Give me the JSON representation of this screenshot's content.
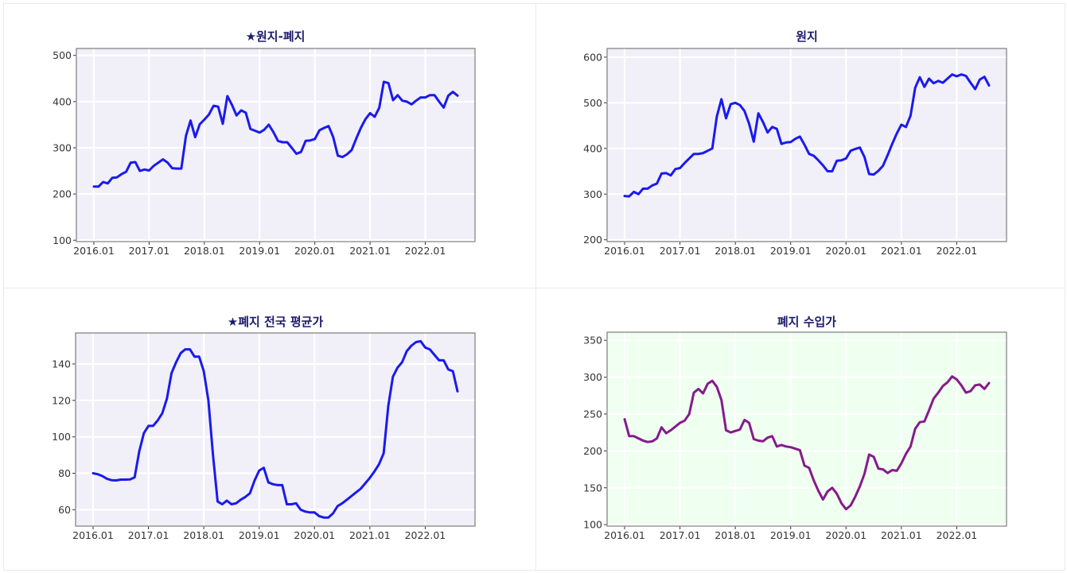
{
  "colors": {
    "line_blue": "#1a1aee",
    "line_purple": "#861a8c",
    "panel_lavender": "#f1eff7",
    "panel_mint": "#effff0",
    "title": "#1c1c6c"
  },
  "chart_data": [
    {
      "id": "chart-wonji-pyeji",
      "type": "line",
      "title": "★원지-폐지",
      "xlabel": "",
      "ylabel": "",
      "x_ticks": [
        "2016.01",
        "2017.01",
        "2018.01",
        "2019.01",
        "2020.01",
        "2021.01",
        "2022.01"
      ],
      "y_ticks": [
        100,
        200,
        300,
        400,
        500
      ],
      "ylim": [
        97,
        515
      ],
      "x_start": "2016.01",
      "x_end": "2022.08",
      "grid": true,
      "background": "#f1eff7",
      "series": [
        {
          "name": "원지-폐지",
          "color": "#1a1aee",
          "values": [
            216,
            216,
            226,
            223,
            235,
            236,
            243,
            248,
            268,
            269,
            250,
            253,
            251,
            261,
            268,
            275,
            268,
            256,
            255,
            255,
            326,
            359,
            323,
            351,
            361,
            372,
            391,
            389,
            352,
            412,
            393,
            370,
            381,
            376,
            341,
            337,
            333,
            339,
            350,
            334,
            315,
            312,
            312,
            300,
            287,
            291,
            315,
            316,
            319,
            338,
            343,
            347,
            323,
            283,
            280,
            286,
            295,
            320,
            343,
            362,
            375,
            367,
            387,
            443,
            440,
            403,
            414,
            402,
            400,
            394,
            402,
            409,
            409,
            414,
            414,
            400,
            387,
            413,
            421,
            413
          ]
        }
      ]
    },
    {
      "id": "chart-wonji",
      "type": "line",
      "title": "원지",
      "xlabel": "",
      "ylabel": "",
      "x_ticks": [
        "2016.01",
        "2017.01",
        "2018.01",
        "2019.01",
        "2020.01",
        "2021.01",
        "2022.01"
      ],
      "y_ticks": [
        200,
        300,
        400,
        500,
        600
      ],
      "ylim": [
        196,
        619
      ],
      "x_start": "2016.01",
      "x_end": "2022.08",
      "grid": true,
      "background": "#f1eff7",
      "series": [
        {
          "name": "원지",
          "color": "#1a1aee",
          "values": [
            296,
            295,
            305,
            300,
            312,
            312,
            319,
            323,
            345,
            346,
            341,
            355,
            357,
            368,
            378,
            388,
            388,
            390,
            395,
            400,
            470,
            508,
            466,
            497,
            500,
            495,
            482,
            454,
            415,
            477,
            458,
            435,
            447,
            443,
            410,
            413,
            414,
            421,
            426,
            408,
            388,
            384,
            374,
            363,
            350,
            350,
            373,
            374,
            378,
            395,
            399,
            402,
            381,
            344,
            343,
            351,
            362,
            385,
            410,
            433,
            452,
            447,
            472,
            533,
            556,
            535,
            553,
            543,
            548,
            544,
            553,
            562,
            558,
            562,
            559,
            544,
            530,
            551,
            557,
            538
          ]
        }
      ]
    },
    {
      "id": "chart-pyeji-national-avg",
      "type": "line",
      "title": "★폐지 전국 평균가",
      "xlabel": "",
      "ylabel": "",
      "x_ticks": [
        "2016.01",
        "2017.01",
        "2018.01",
        "2019.01",
        "2020.01",
        "2021.01",
        "2022.01"
      ],
      "y_ticks": [
        60,
        80,
        100,
        120,
        140
      ],
      "ylim": [
        51,
        157
      ],
      "x_start": "2016.01",
      "x_end": "2022.08",
      "grid": true,
      "background": "#f1eff7",
      "series": [
        {
          "name": "폐지 전국 평균가",
          "color": "#1a1aee",
          "values": [
            80,
            79.5,
            78.5,
            77,
            76.2,
            76.1,
            76.5,
            76.5,
            76.6,
            77.8,
            92,
            102,
            106,
            106,
            109,
            113,
            121,
            135,
            141,
            146,
            148,
            148,
            144,
            144,
            136,
            120,
            90,
            64.5,
            63,
            65,
            63,
            63.5,
            65.5,
            67,
            69,
            76,
            81.5,
            83,
            75,
            74,
            73.5,
            73.5,
            63,
            63,
            63.5,
            60,
            59,
            58.5,
            58.5,
            56.5,
            55.7,
            55.7,
            58,
            62,
            63.5,
            65.5,
            67.5,
            69.5,
            71.5,
            74.5,
            77.5,
            81,
            85,
            91,
            117,
            133,
            138,
            141,
            147,
            150,
            152,
            152.5,
            149,
            148,
            145,
            142,
            142,
            137,
            136,
            125
          ]
        }
      ]
    },
    {
      "id": "chart-pyeji-import",
      "type": "line",
      "title": "폐지 수입가",
      "xlabel": "",
      "ylabel": "",
      "x_ticks": [
        "2016.01",
        "2017.01",
        "2018.01",
        "2019.01",
        "2020.01",
        "2021.01",
        "2022.01"
      ],
      "y_ticks": [
        100,
        150,
        200,
        250,
        300,
        350
      ],
      "ylim": [
        98,
        361
      ],
      "x_start": "2016.01",
      "x_end": "2022.08",
      "grid": true,
      "background": "#effff0",
      "series": [
        {
          "name": "폐지 수입가",
          "color": "#861a8c",
          "values": [
            243,
            220,
            220,
            217,
            214,
            212,
            213,
            217,
            232,
            224,
            228,
            233,
            238,
            241,
            250,
            279,
            284,
            278,
            291,
            295,
            287,
            269,
            228,
            225,
            227,
            229,
            242,
            238,
            216,
            214,
            213,
            218,
            220,
            206,
            208,
            206,
            205,
            203,
            201,
            180,
            177,
            160,
            146,
            134,
            145,
            150,
            142,
            129,
            121,
            126,
            138,
            152,
            169,
            195,
            192,
            176,
            175,
            170,
            174,
            173,
            183,
            196,
            206,
            230,
            239,
            240,
            255,
            271,
            279,
            288,
            293,
            301,
            297,
            289,
            279,
            281,
            289,
            290,
            284,
            292
          ]
        }
      ]
    }
  ]
}
